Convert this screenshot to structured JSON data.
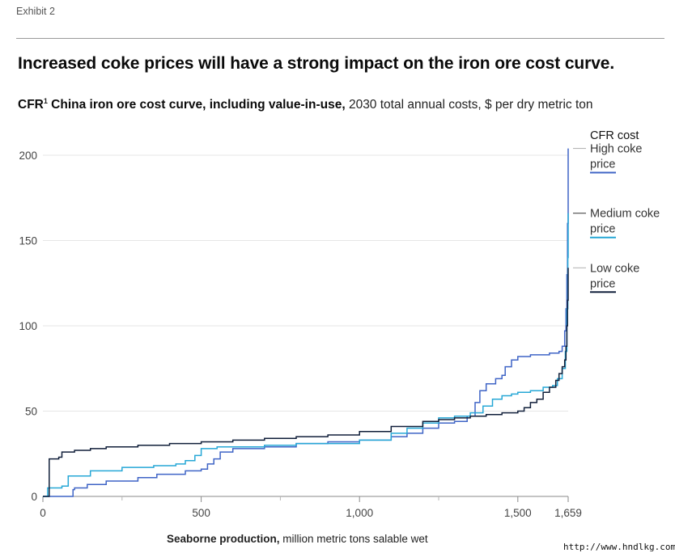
{
  "header": {
    "exhibit": "Exhibit 2",
    "title": "Increased coke prices will have a strong impact on the iron ore cost curve.",
    "subtitle_bold": "CFR",
    "subtitle_sup": "1",
    "subtitle_bold2": " China iron ore cost curve, including value-in-use,",
    "subtitle_rest": " 2030 total annual costs, $ per dry metric ton"
  },
  "x_caption": {
    "bold": "Seaborne production,",
    "rest": " million metric tons salable wet"
  },
  "watermark": "http://www.hndlkg.com",
  "chart_data": {
    "type": "line",
    "xlabel": "Seaborne production, million metric tons salable wet",
    "ylabel": "$ per dry metric ton",
    "xlim": [
      0,
      1659
    ],
    "ylim": [
      0,
      200
    ],
    "x_ticks": [
      0,
      500,
      1000,
      1500,
      1659
    ],
    "x_tick_labels": [
      "0",
      "500",
      "1,000",
      "1,500",
      "1,659"
    ],
    "x_minor_ticks": [
      250,
      750,
      1250
    ],
    "y_ticks": [
      0,
      50,
      100,
      150,
      200
    ],
    "y_tick_labels": [
      "0",
      "50",
      "100",
      "150",
      "200"
    ],
    "grid": "horizontal",
    "legend_title": "CFR cost",
    "legend_placement": "right",
    "series": [
      {
        "name": "High coke price",
        "color": "#3f64c6",
        "label_y": 204,
        "points": [
          [
            0,
            0
          ],
          [
            95,
            0
          ],
          [
            95,
            4
          ],
          [
            100,
            5
          ],
          [
            140,
            7
          ],
          [
            200,
            9
          ],
          [
            300,
            11
          ],
          [
            360,
            13
          ],
          [
            450,
            15
          ],
          [
            500,
            16
          ],
          [
            520,
            19
          ],
          [
            540,
            22
          ],
          [
            560,
            26
          ],
          [
            600,
            28
          ],
          [
            700,
            29
          ],
          [
            800,
            31
          ],
          [
            900,
            32
          ],
          [
            1000,
            33
          ],
          [
            1100,
            35
          ],
          [
            1150,
            37
          ],
          [
            1200,
            40
          ],
          [
            1250,
            43
          ],
          [
            1300,
            44
          ],
          [
            1340,
            47
          ],
          [
            1365,
            55
          ],
          [
            1380,
            62
          ],
          [
            1400,
            66
          ],
          [
            1430,
            69
          ],
          [
            1450,
            71
          ],
          [
            1460,
            76
          ],
          [
            1480,
            80
          ],
          [
            1500,
            82
          ],
          [
            1540,
            83
          ],
          [
            1600,
            84
          ],
          [
            1630,
            85
          ],
          [
            1640,
            88
          ],
          [
            1648,
            97
          ],
          [
            1652,
            110
          ],
          [
            1655,
            130
          ],
          [
            1657,
            160
          ],
          [
            1659,
            204
          ]
        ]
      },
      {
        "name": "Medium coke price",
        "color": "#26a7d6",
        "label_y": 166,
        "points": [
          [
            0,
            0
          ],
          [
            10,
            0
          ],
          [
            15,
            5
          ],
          [
            60,
            6
          ],
          [
            80,
            12
          ],
          [
            150,
            15
          ],
          [
            250,
            17
          ],
          [
            350,
            18
          ],
          [
            420,
            19
          ],
          [
            450,
            21
          ],
          [
            480,
            24
          ],
          [
            500,
            28
          ],
          [
            550,
            29
          ],
          [
            650,
            29
          ],
          [
            700,
            30
          ],
          [
            800,
            31
          ],
          [
            900,
            31
          ],
          [
            1000,
            33
          ],
          [
            1100,
            37
          ],
          [
            1150,
            40
          ],
          [
            1200,
            43
          ],
          [
            1250,
            46
          ],
          [
            1300,
            47
          ],
          [
            1350,
            49
          ],
          [
            1390,
            53
          ],
          [
            1420,
            57
          ],
          [
            1450,
            59
          ],
          [
            1480,
            60
          ],
          [
            1500,
            61
          ],
          [
            1540,
            62
          ],
          [
            1580,
            64
          ],
          [
            1610,
            65
          ],
          [
            1625,
            69
          ],
          [
            1640,
            75
          ],
          [
            1650,
            85
          ],
          [
            1655,
            110
          ],
          [
            1658,
            140
          ],
          [
            1659,
            166
          ]
        ]
      },
      {
        "name": "Low coke price",
        "color": "#101f3a",
        "label_y": 134,
        "points": [
          [
            0,
            0
          ],
          [
            15,
            0
          ],
          [
            20,
            22
          ],
          [
            50,
            23
          ],
          [
            60,
            26
          ],
          [
            100,
            27
          ],
          [
            150,
            28
          ],
          [
            200,
            29
          ],
          [
            300,
            30
          ],
          [
            400,
            31
          ],
          [
            500,
            32
          ],
          [
            600,
            33
          ],
          [
            700,
            34
          ],
          [
            800,
            35
          ],
          [
            900,
            36
          ],
          [
            1000,
            38
          ],
          [
            1100,
            41
          ],
          [
            1200,
            44
          ],
          [
            1250,
            45
          ],
          [
            1300,
            46
          ],
          [
            1350,
            47
          ],
          [
            1400,
            48
          ],
          [
            1450,
            49
          ],
          [
            1500,
            50
          ],
          [
            1520,
            52
          ],
          [
            1540,
            55
          ],
          [
            1560,
            57
          ],
          [
            1580,
            61
          ],
          [
            1600,
            64
          ],
          [
            1620,
            68
          ],
          [
            1630,
            72
          ],
          [
            1640,
            76
          ],
          [
            1648,
            80
          ],
          [
            1652,
            88
          ],
          [
            1655,
            100
          ],
          [
            1657,
            115
          ],
          [
            1659,
            134
          ]
        ]
      }
    ]
  }
}
